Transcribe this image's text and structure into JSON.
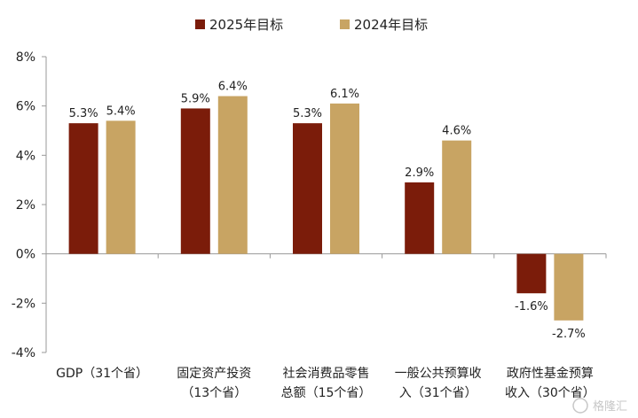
{
  "chart_data": {
    "type": "bar",
    "categories": [
      [
        "GDP（31个省）"
      ],
      [
        "固定资产投资",
        "（13个省）"
      ],
      [
        "社会消费品零售",
        "总额（15个省）"
      ],
      [
        "一般公共预算收",
        "入（31个省）"
      ],
      [
        "政府性基金预算",
        "收入（30个省）"
      ]
    ],
    "series": [
      {
        "name": "2025年目标",
        "color": "#7b1c0a",
        "values": [
          5.3,
          5.9,
          5.3,
          2.9,
          -1.6
        ],
        "labels": [
          "5.3%",
          "5.9%",
          "5.3%",
          "2.9%",
          "-1.6%"
        ]
      },
      {
        "name": "2024年目标",
        "color": "#c8a463",
        "values": [
          5.4,
          6.4,
          6.1,
          4.6,
          -2.7
        ],
        "labels": [
          "5.4%",
          "6.4%",
          "6.1%",
          "4.6%",
          "-2.7%"
        ]
      }
    ],
    "yticks": [
      8,
      6,
      4,
      2,
      0,
      -2,
      -4
    ],
    "ytick_labels": [
      "8%",
      "6%",
      "4%",
      "2%",
      "0%",
      "-2%",
      "-4%"
    ],
    "ylim": [
      -4,
      8
    ],
    "legend_position": "top-center",
    "grid": false
  },
  "watermark": "格隆汇"
}
